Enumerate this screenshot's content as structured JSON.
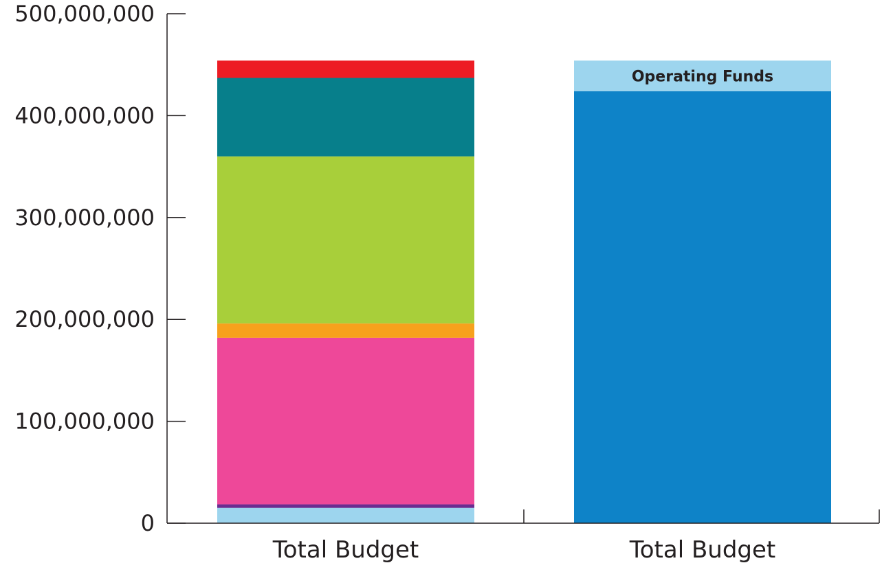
{
  "chart_data": {
    "type": "bar",
    "stacked": true,
    "title": "",
    "xlabel": "",
    "ylabel": "",
    "ylim": [
      0,
      500000000
    ],
    "yticks": [
      0,
      100000000,
      200000000,
      300000000,
      400000000,
      500000000
    ],
    "ytick_labels": [
      "0",
      "100,000,000",
      "200,000,000",
      "300,000,000",
      "400,000,000",
      "500,000,000"
    ],
    "grid": false,
    "legend": "none",
    "categories": [
      "Total Budget",
      "Total Budget"
    ],
    "bars": [
      {
        "category": "Total Budget",
        "segments": [
          {
            "value": 15000000,
            "color": "#9dd5ee",
            "label": ""
          },
          {
            "value": 3500000,
            "color": "#6a2c91",
            "label": ""
          },
          {
            "value": 163500000,
            "color": "#ee4899",
            "label": ""
          },
          {
            "value": 14000000,
            "color": "#f7a11c",
            "label": ""
          },
          {
            "value": 164000000,
            "color": "#a8cf3a",
            "label": ""
          },
          {
            "value": 77000000,
            "color": "#077f8b",
            "label": ""
          },
          {
            "value": 17000000,
            "color": "#ed1c24",
            "label": ""
          }
        ]
      },
      {
        "category": "Total Budget",
        "segments": [
          {
            "value": 424000000,
            "color": "#0e83c8",
            "label": ""
          },
          {
            "value": 30000000,
            "color": "#9dd5ee",
            "label": "Operating Funds"
          }
        ]
      }
    ]
  }
}
